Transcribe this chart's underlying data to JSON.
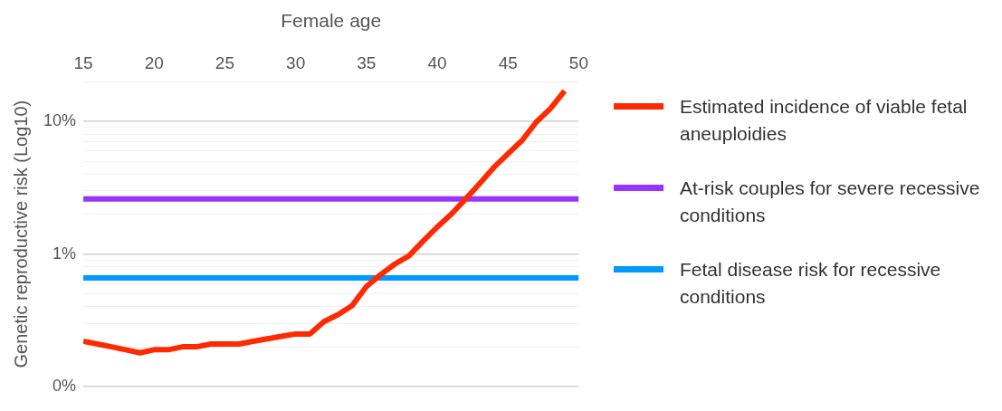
{
  "chart_data": {
    "type": "line",
    "xlabel": "Female age",
    "ylabel": "Genetic reproductive risk (Log10)",
    "log": true,
    "grid": "y",
    "legend": "right",
    "xlim": [
      15,
      50
    ],
    "xticks": [
      15,
      20,
      25,
      30,
      35,
      40,
      45,
      50
    ],
    "ylim": [
      0.1,
      20
    ],
    "yticks": [
      {
        "value": 0.1,
        "label": "0%"
      },
      {
        "value": 0.2,
        "label": null
      },
      {
        "value": 0.3,
        "label": null
      },
      {
        "value": 0.4,
        "label": null
      },
      {
        "value": 0.5,
        "label": null
      },
      {
        "value": 0.6,
        "label": null
      },
      {
        "value": 0.7,
        "label": null
      },
      {
        "value": 0.8,
        "label": null
      },
      {
        "value": 0.9,
        "label": null
      },
      {
        "value": 1,
        "label": "1%"
      },
      {
        "value": 2,
        "label": null
      },
      {
        "value": 3,
        "label": null
      },
      {
        "value": 4,
        "label": null
      },
      {
        "value": 5,
        "label": null
      },
      {
        "value": 6,
        "label": null
      },
      {
        "value": 7,
        "label": null
      },
      {
        "value": 8,
        "label": null
      },
      {
        "value": 9,
        "label": null
      },
      {
        "value": 10,
        "label": "10%"
      },
      {
        "value": 20,
        "label": null
      }
    ],
    "series": [
      {
        "name": "Estimated incidence of viable fetal aneuploidies",
        "color": "#ff2a00",
        "x": [
          15,
          16,
          17,
          18,
          19,
          20,
          21,
          22,
          23,
          24,
          25,
          26,
          27,
          28,
          29,
          30,
          31,
          32,
          33,
          34,
          35,
          36,
          37,
          38,
          39,
          40,
          41,
          42,
          43,
          44,
          45,
          46,
          47,
          48,
          49
        ],
        "values": [
          0.22,
          0.21,
          0.2,
          0.19,
          0.18,
          0.19,
          0.19,
          0.2,
          0.2,
          0.21,
          0.21,
          0.21,
          0.22,
          0.23,
          0.24,
          0.25,
          0.25,
          0.31,
          0.35,
          0.41,
          0.57,
          0.7,
          0.84,
          0.97,
          1.25,
          1.6,
          2.0,
          2.6,
          3.4,
          4.5,
          5.7,
          7.2,
          9.9,
          12.5,
          17
        ]
      },
      {
        "name": "At-risk couples for severe recessive conditions",
        "color": "#9933ff",
        "x": [
          15,
          50
        ],
        "values": [
          2.6,
          2.6
        ]
      },
      {
        "name": "Fetal disease risk for recessive conditions",
        "color": "#0099ff",
        "x": [
          15,
          50
        ],
        "values": [
          0.66,
          0.66
        ]
      }
    ]
  }
}
